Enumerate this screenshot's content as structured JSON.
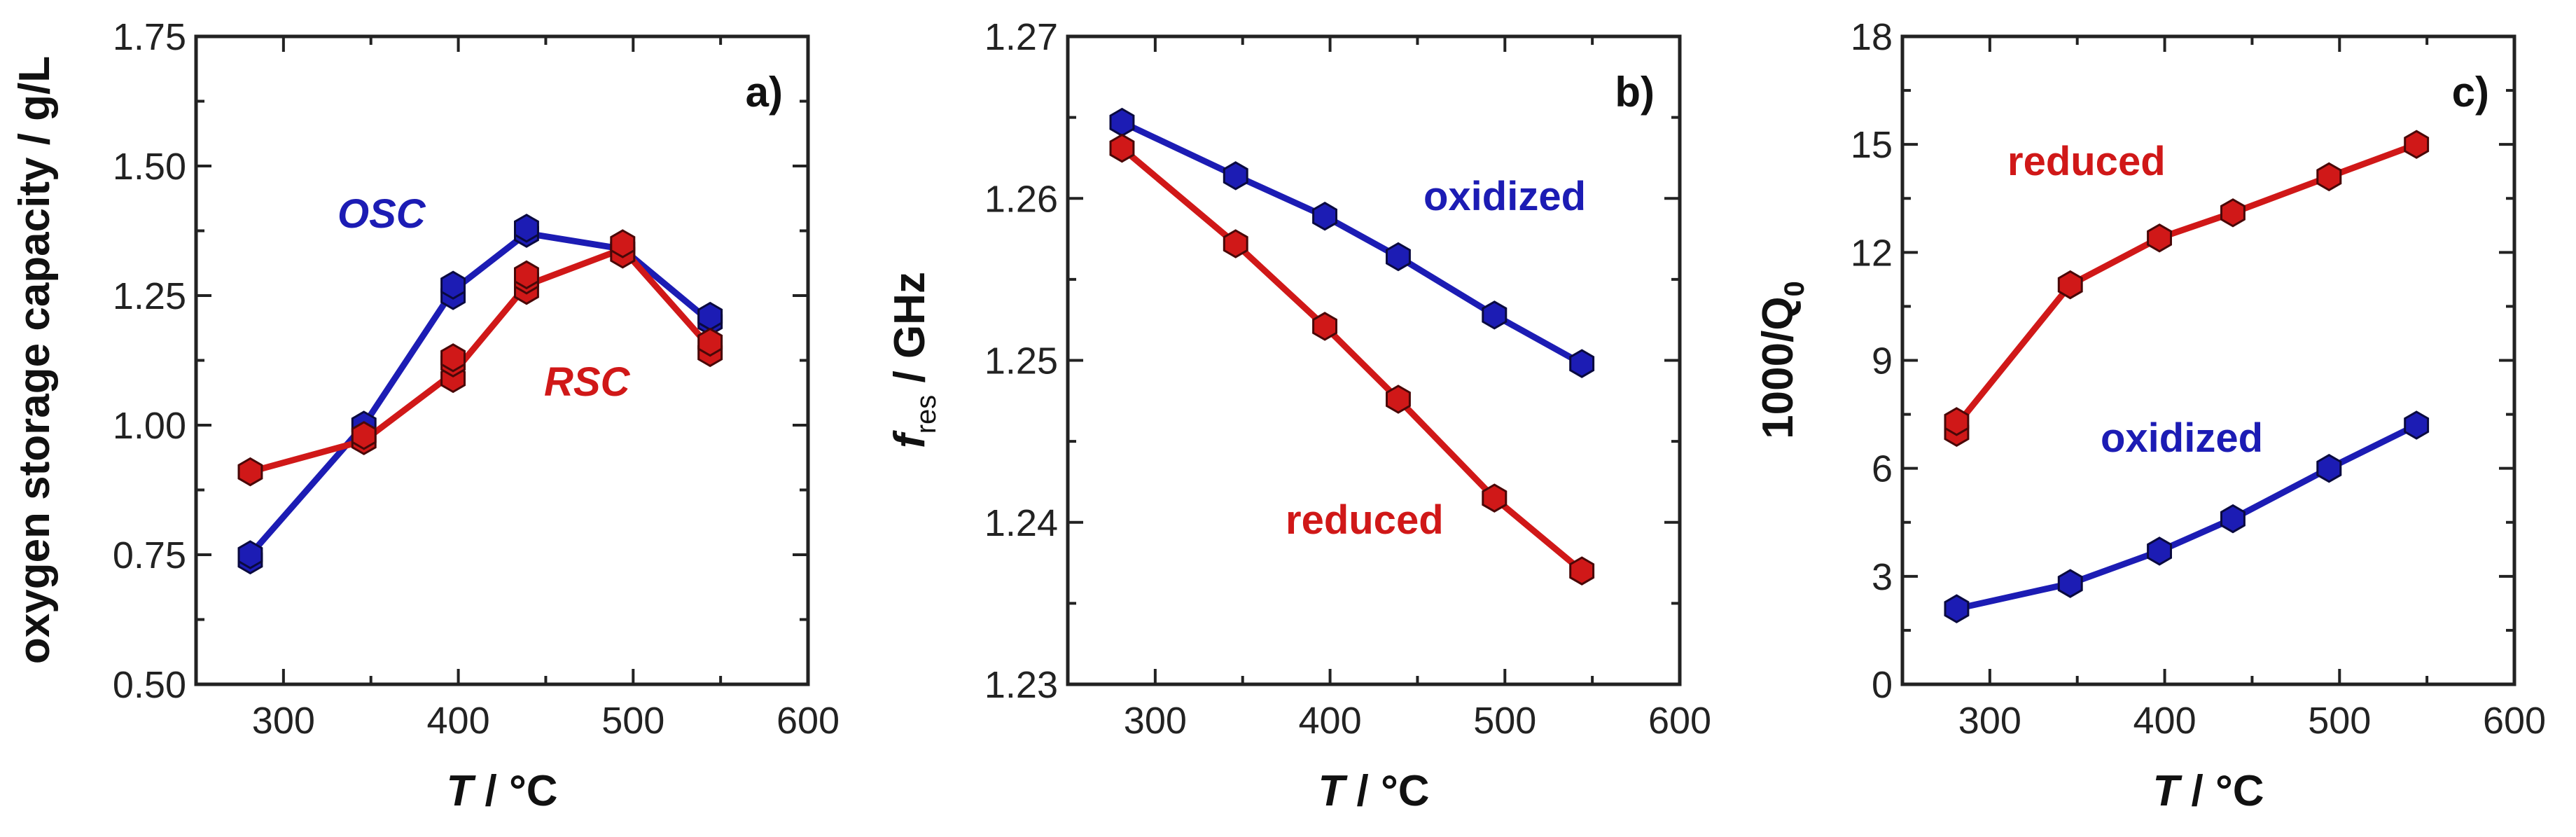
{
  "chart_data": [
    {
      "type": "line",
      "panel_label": "a)",
      "title": "",
      "xlabel": {
        "italic": "T",
        "rest": " / °C"
      },
      "ylabel": "oxygen storage capacity / g/L",
      "xlim": [
        250,
        600
      ],
      "ylim": [
        0.5,
        1.75
      ],
      "xticks": [
        300,
        400,
        500,
        600
      ],
      "yticks": [
        "0.50",
        "0.75",
        "1.00",
        "1.25",
        "1.50",
        "1.75"
      ],
      "grid": false,
      "series": [
        {
          "name": "OSC",
          "color": "#1c1cb4",
          "label_italic": true,
          "x": [
            281,
            346,
            397,
            439,
            494,
            544
          ],
          "y": [
            0.75,
            1.0,
            1.26,
            1.37,
            1.34,
            1.2
          ],
          "points": [
            [
              281,
              0.74
            ],
            [
              281,
              0.75
            ],
            [
              346,
              1.0
            ],
            [
              397,
              1.25
            ],
            [
              397,
              1.27
            ],
            [
              439,
              1.37
            ],
            [
              439,
              1.38
            ],
            [
              494,
              1.34
            ],
            [
              544,
              1.2
            ],
            [
              544,
              1.21
            ]
          ]
        },
        {
          "name": "RSC",
          "color": "#d01818",
          "label_italic": true,
          "x": [
            281,
            346,
            397,
            439,
            494,
            544
          ],
          "y": [
            0.91,
            0.97,
            1.1,
            1.27,
            1.34,
            1.15
          ],
          "points": [
            [
              281,
              0.91
            ],
            [
              346,
              0.97
            ],
            [
              346,
              0.98
            ],
            [
              397,
              1.09
            ],
            [
              397,
              1.12
            ],
            [
              397,
              1.13
            ],
            [
              439,
              1.26
            ],
            [
              439,
              1.28
            ],
            [
              439,
              1.29
            ],
            [
              494,
              1.33
            ],
            [
              494,
              1.35
            ],
            [
              544,
              1.14
            ],
            [
              544,
              1.16
            ]
          ]
        }
      ]
    },
    {
      "type": "line",
      "panel_label": "b)",
      "title": "",
      "xlabel": {
        "italic": "T",
        "rest": " / °C"
      },
      "ylabel": {
        "italic": "f",
        "sub": "res",
        "rest": " / GHz"
      },
      "xlim": [
        250,
        600
      ],
      "ylim": [
        1.23,
        1.27
      ],
      "xticks": [
        300,
        400,
        500,
        600
      ],
      "yticks": [
        "1.23",
        "1.24",
        "1.25",
        "1.26",
        "1.27"
      ],
      "grid": false,
      "series": [
        {
          "name": "oxidized",
          "color": "#1c1cb4",
          "label_italic": false,
          "x": [
            281,
            346,
            397,
            439,
            494,
            544
          ],
          "y": [
            1.2647,
            1.2614,
            1.2589,
            1.2564,
            1.2528,
            1.2498
          ],
          "points": [
            [
              281,
              1.2647
            ],
            [
              346,
              1.2614
            ],
            [
              397,
              1.2589
            ],
            [
              439,
              1.2564
            ],
            [
              494,
              1.2528
            ],
            [
              544,
              1.2498
            ]
          ]
        },
        {
          "name": "reduced",
          "color": "#d01818",
          "label_italic": false,
          "x": [
            281,
            346,
            397,
            439,
            494,
            544
          ],
          "y": [
            1.2631,
            1.2572,
            1.2521,
            1.2476,
            1.2415,
            1.237
          ],
          "points": [
            [
              281,
              1.2631
            ],
            [
              346,
              1.2572
            ],
            [
              397,
              1.2521
            ],
            [
              439,
              1.2476
            ],
            [
              494,
              1.2415
            ],
            [
              544,
              1.237
            ]
          ]
        }
      ]
    },
    {
      "type": "line",
      "panel_label": "c)",
      "title": "",
      "xlabel": {
        "italic": "T",
        "rest": " / °C"
      },
      "ylabel": {
        "text": "1000/Q",
        "sub": "0"
      },
      "xlim": [
        250,
        600
      ],
      "ylim": [
        0,
        18
      ],
      "xticks": [
        300,
        400,
        500,
        600
      ],
      "yticks": [
        "0",
        "3",
        "6",
        "9",
        "12",
        "15",
        "18"
      ],
      "grid": false,
      "series": [
        {
          "name": "reduced",
          "color": "#d01818",
          "label_italic": false,
          "x": [
            281,
            346,
            397,
            439,
            494,
            544
          ],
          "y": [
            7.2,
            11.1,
            12.4,
            13.1,
            14.1,
            15.0
          ],
          "points": [
            [
              281,
              7.0
            ],
            [
              281,
              7.3
            ],
            [
              346,
              11.1
            ],
            [
              397,
              12.4
            ],
            [
              439,
              13.1
            ],
            [
              494,
              14.1
            ],
            [
              544,
              15.0
            ]
          ]
        },
        {
          "name": "oxidized",
          "color": "#1c1cb4",
          "label_italic": false,
          "x": [
            281,
            346,
            397,
            439,
            494,
            544
          ],
          "y": [
            2.1,
            2.8,
            3.7,
            4.6,
            6.0,
            7.2
          ],
          "points": [
            [
              281,
              2.1
            ],
            [
              346,
              2.8
            ],
            [
              397,
              3.7
            ],
            [
              439,
              4.6
            ],
            [
              494,
              6.0
            ],
            [
              544,
              7.2
            ]
          ]
        }
      ]
    }
  ]
}
